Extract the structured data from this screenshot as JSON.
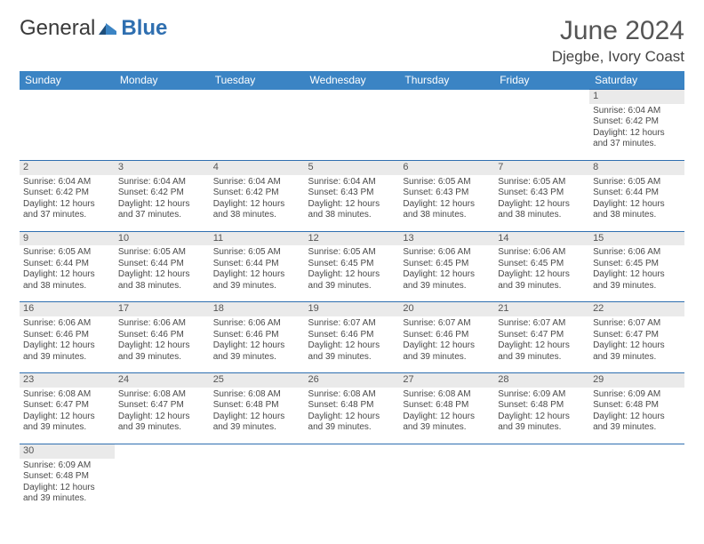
{
  "brand": {
    "part1": "General",
    "part2": "Blue"
  },
  "title": "June 2024",
  "location": "Djegbe, Ivory Coast",
  "colors": {
    "header_bg": "#3b84c4",
    "header_text": "#ffffff",
    "daynum_bg": "#eaeaea",
    "rule": "#2f6fb0",
    "text": "#494949",
    "title_text": "#555555"
  },
  "typography": {
    "title_fontsize_pt": 22,
    "location_fontsize_pt": 13,
    "dayheader_fontsize_pt": 9,
    "cell_fontsize_pt": 7.5
  },
  "day_headers": [
    "Sunday",
    "Monday",
    "Tuesday",
    "Wednesday",
    "Thursday",
    "Friday",
    "Saturday"
  ],
  "weeks": [
    {
      "nums": [
        "",
        "",
        "",
        "",
        "",
        "",
        "1"
      ],
      "cells": [
        null,
        null,
        null,
        null,
        null,
        null,
        {
          "sunrise": "Sunrise: 6:04 AM",
          "sunset": "Sunset: 6:42 PM",
          "day1": "Daylight: 12 hours",
          "day2": "and 37 minutes."
        }
      ]
    },
    {
      "nums": [
        "2",
        "3",
        "4",
        "5",
        "6",
        "7",
        "8"
      ],
      "cells": [
        {
          "sunrise": "Sunrise: 6:04 AM",
          "sunset": "Sunset: 6:42 PM",
          "day1": "Daylight: 12 hours",
          "day2": "and 37 minutes."
        },
        {
          "sunrise": "Sunrise: 6:04 AM",
          "sunset": "Sunset: 6:42 PM",
          "day1": "Daylight: 12 hours",
          "day2": "and 37 minutes."
        },
        {
          "sunrise": "Sunrise: 6:04 AM",
          "sunset": "Sunset: 6:42 PM",
          "day1": "Daylight: 12 hours",
          "day2": "and 38 minutes."
        },
        {
          "sunrise": "Sunrise: 6:04 AM",
          "sunset": "Sunset: 6:43 PM",
          "day1": "Daylight: 12 hours",
          "day2": "and 38 minutes."
        },
        {
          "sunrise": "Sunrise: 6:05 AM",
          "sunset": "Sunset: 6:43 PM",
          "day1": "Daylight: 12 hours",
          "day2": "and 38 minutes."
        },
        {
          "sunrise": "Sunrise: 6:05 AM",
          "sunset": "Sunset: 6:43 PM",
          "day1": "Daylight: 12 hours",
          "day2": "and 38 minutes."
        },
        {
          "sunrise": "Sunrise: 6:05 AM",
          "sunset": "Sunset: 6:44 PM",
          "day1": "Daylight: 12 hours",
          "day2": "and 38 minutes."
        }
      ]
    },
    {
      "nums": [
        "9",
        "10",
        "11",
        "12",
        "13",
        "14",
        "15"
      ],
      "cells": [
        {
          "sunrise": "Sunrise: 6:05 AM",
          "sunset": "Sunset: 6:44 PM",
          "day1": "Daylight: 12 hours",
          "day2": "and 38 minutes."
        },
        {
          "sunrise": "Sunrise: 6:05 AM",
          "sunset": "Sunset: 6:44 PM",
          "day1": "Daylight: 12 hours",
          "day2": "and 38 minutes."
        },
        {
          "sunrise": "Sunrise: 6:05 AM",
          "sunset": "Sunset: 6:44 PM",
          "day1": "Daylight: 12 hours",
          "day2": "and 39 minutes."
        },
        {
          "sunrise": "Sunrise: 6:05 AM",
          "sunset": "Sunset: 6:45 PM",
          "day1": "Daylight: 12 hours",
          "day2": "and 39 minutes."
        },
        {
          "sunrise": "Sunrise: 6:06 AM",
          "sunset": "Sunset: 6:45 PM",
          "day1": "Daylight: 12 hours",
          "day2": "and 39 minutes."
        },
        {
          "sunrise": "Sunrise: 6:06 AM",
          "sunset": "Sunset: 6:45 PM",
          "day1": "Daylight: 12 hours",
          "day2": "and 39 minutes."
        },
        {
          "sunrise": "Sunrise: 6:06 AM",
          "sunset": "Sunset: 6:45 PM",
          "day1": "Daylight: 12 hours",
          "day2": "and 39 minutes."
        }
      ]
    },
    {
      "nums": [
        "16",
        "17",
        "18",
        "19",
        "20",
        "21",
        "22"
      ],
      "cells": [
        {
          "sunrise": "Sunrise: 6:06 AM",
          "sunset": "Sunset: 6:46 PM",
          "day1": "Daylight: 12 hours",
          "day2": "and 39 minutes."
        },
        {
          "sunrise": "Sunrise: 6:06 AM",
          "sunset": "Sunset: 6:46 PM",
          "day1": "Daylight: 12 hours",
          "day2": "and 39 minutes."
        },
        {
          "sunrise": "Sunrise: 6:06 AM",
          "sunset": "Sunset: 6:46 PM",
          "day1": "Daylight: 12 hours",
          "day2": "and 39 minutes."
        },
        {
          "sunrise": "Sunrise: 6:07 AM",
          "sunset": "Sunset: 6:46 PM",
          "day1": "Daylight: 12 hours",
          "day2": "and 39 minutes."
        },
        {
          "sunrise": "Sunrise: 6:07 AM",
          "sunset": "Sunset: 6:46 PM",
          "day1": "Daylight: 12 hours",
          "day2": "and 39 minutes."
        },
        {
          "sunrise": "Sunrise: 6:07 AM",
          "sunset": "Sunset: 6:47 PM",
          "day1": "Daylight: 12 hours",
          "day2": "and 39 minutes."
        },
        {
          "sunrise": "Sunrise: 6:07 AM",
          "sunset": "Sunset: 6:47 PM",
          "day1": "Daylight: 12 hours",
          "day2": "and 39 minutes."
        }
      ]
    },
    {
      "nums": [
        "23",
        "24",
        "25",
        "26",
        "27",
        "28",
        "29"
      ],
      "cells": [
        {
          "sunrise": "Sunrise: 6:08 AM",
          "sunset": "Sunset: 6:47 PM",
          "day1": "Daylight: 12 hours",
          "day2": "and 39 minutes."
        },
        {
          "sunrise": "Sunrise: 6:08 AM",
          "sunset": "Sunset: 6:47 PM",
          "day1": "Daylight: 12 hours",
          "day2": "and 39 minutes."
        },
        {
          "sunrise": "Sunrise: 6:08 AM",
          "sunset": "Sunset: 6:48 PM",
          "day1": "Daylight: 12 hours",
          "day2": "and 39 minutes."
        },
        {
          "sunrise": "Sunrise: 6:08 AM",
          "sunset": "Sunset: 6:48 PM",
          "day1": "Daylight: 12 hours",
          "day2": "and 39 minutes."
        },
        {
          "sunrise": "Sunrise: 6:08 AM",
          "sunset": "Sunset: 6:48 PM",
          "day1": "Daylight: 12 hours",
          "day2": "and 39 minutes."
        },
        {
          "sunrise": "Sunrise: 6:09 AM",
          "sunset": "Sunset: 6:48 PM",
          "day1": "Daylight: 12 hours",
          "day2": "and 39 minutes."
        },
        {
          "sunrise": "Sunrise: 6:09 AM",
          "sunset": "Sunset: 6:48 PM",
          "day1": "Daylight: 12 hours",
          "day2": "and 39 minutes."
        }
      ]
    },
    {
      "nums": [
        "30",
        "",
        "",
        "",
        "",
        "",
        ""
      ],
      "cells": [
        {
          "sunrise": "Sunrise: 6:09 AM",
          "sunset": "Sunset: 6:48 PM",
          "day1": "Daylight: 12 hours",
          "day2": "and 39 minutes."
        },
        null,
        null,
        null,
        null,
        null,
        null
      ]
    }
  ]
}
